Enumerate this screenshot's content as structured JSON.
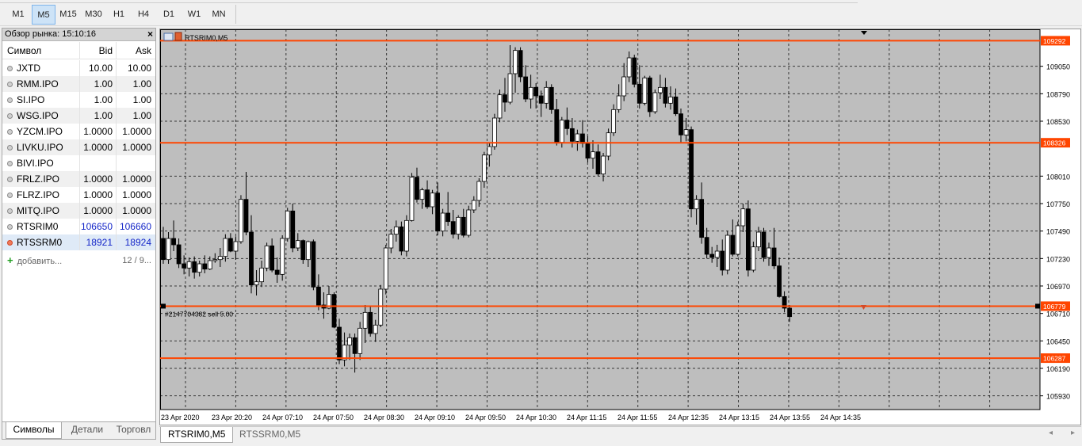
{
  "timeframes": [
    "M1",
    "M5",
    "M15",
    "M30",
    "H1",
    "H4",
    "D1",
    "W1",
    "MN"
  ],
  "active_timeframe": "M5",
  "market_watch": {
    "title": "Обзор рынка: 15:10:16",
    "close_glyph": "×",
    "columns": {
      "symbol": "Символ",
      "bid": "Bid",
      "ask": "Ask"
    },
    "rows": [
      {
        "symbol": "JXTD",
        "bid": "10.00",
        "ask": "10.00"
      },
      {
        "symbol": "RMM.IPO",
        "bid": "1.00",
        "ask": "1.00"
      },
      {
        "symbol": "SI.IPO",
        "bid": "1.00",
        "ask": "1.00"
      },
      {
        "symbol": "WSG.IPO",
        "bid": "1.00",
        "ask": "1.00"
      },
      {
        "symbol": "YZCM.IPO",
        "bid": "1.0000",
        "ask": "1.0000"
      },
      {
        "symbol": "LIVKU.IPO",
        "bid": "1.0000",
        "ask": "1.0000"
      },
      {
        "symbol": "BIVI.IPO",
        "bid": "",
        "ask": ""
      },
      {
        "symbol": "FRLZ.IPO",
        "bid": "1.0000",
        "ask": "1.0000"
      },
      {
        "symbol": "FLRZ.IPO",
        "bid": "1.0000",
        "ask": "1.0000"
      },
      {
        "symbol": "MITQ.IPO",
        "bid": "1.0000",
        "ask": "1.0000"
      },
      {
        "symbol": "RTSRIM0",
        "bid": "106650",
        "ask": "106660"
      },
      {
        "symbol": "RTSSRM0",
        "bid": "18921",
        "ask": "18924"
      }
    ],
    "add_label": "добавить...",
    "count": "12 / 9...",
    "tabs": [
      "Символы",
      "Детали",
      "Торговл"
    ]
  },
  "chart": {
    "title": "RTSRIM0,M5",
    "order_label": "#2147704382 sell 5.00",
    "hlines": [
      {
        "price": 109292,
        "label": "109292"
      },
      {
        "price": 108326,
        "label": "108326"
      },
      {
        "price": 106779,
        "label": "106779"
      },
      {
        "price": 106287,
        "label": "106287"
      }
    ],
    "line_color": "#ff4500",
    "up_color": "#ffffff",
    "down_color": "#000000",
    "bg_color": "#bebebe",
    "grid_color": "#000000"
  },
  "chart_data": {
    "type": "candlestick",
    "y_ticks": [
      109050,
      108790,
      108530,
      108010,
      107750,
      107490,
      107230,
      106970,
      106710,
      106450,
      106190,
      105930
    ],
    "x_ticks": [
      "23 Apr 2020",
      "23 Apr 20:20",
      "24 Apr 07:10",
      "24 Apr 07:50",
      "24 Apr 08:30",
      "24 Apr 09:10",
      "24 Apr 09:50",
      "24 Apr 10:30",
      "24 Apr 11:15",
      "24 Apr 11:55",
      "24 Apr 12:35",
      "24 Apr 13:15",
      "24 Apr 13:55",
      "24 Apr 14:35"
    ],
    "ylim": [
      105800,
      109400
    ],
    "candles": [
      [
        107420,
        107530,
        107180,
        107220
      ],
      [
        107220,
        107480,
        107180,
        107420
      ],
      [
        107420,
        107590,
        107300,
        107360
      ],
      [
        107360,
        107420,
        107140,
        107180
      ],
      [
        107180,
        107260,
        107080,
        107140
      ],
      [
        107140,
        107240,
        107060,
        107200
      ],
      [
        107200,
        107250,
        107040,
        107100
      ],
      [
        107100,
        107210,
        107060,
        107180
      ],
      [
        107180,
        107260,
        107090,
        107130
      ],
      [
        107130,
        107250,
        107120,
        107210
      ],
      [
        107210,
        107280,
        107190,
        107220
      ],
      [
        107220,
        107330,
        107150,
        107250
      ],
      [
        107250,
        107460,
        107200,
        107420
      ],
      [
        107420,
        107470,
        107290,
        107300
      ],
      [
        107300,
        107440,
        107220,
        107390
      ],
      [
        107390,
        107830,
        107370,
        107790
      ],
      [
        107790,
        108050,
        107450,
        107480
      ],
      [
        107480,
        107640,
        106900,
        106980
      ],
      [
        106980,
        107120,
        106880,
        107010
      ],
      [
        107010,
        107210,
        106960,
        107140
      ],
      [
        107140,
        107380,
        107110,
        107350
      ],
      [
        107350,
        107420,
        107100,
        107120
      ],
      [
        107120,
        107240,
        107000,
        107080
      ],
      [
        107080,
        107450,
        107020,
        107420
      ],
      [
        107420,
        107710,
        107390,
        107680
      ],
      [
        107680,
        107750,
        107290,
        107330
      ],
      [
        107330,
        107470,
        107300,
        107400
      ],
      [
        107400,
        107410,
        107180,
        107220
      ],
      [
        107220,
        107400,
        107150,
        107390
      ],
      [
        107390,
        107410,
        106930,
        106960
      ],
      [
        106960,
        107080,
        106740,
        106790
      ],
      [
        106790,
        106910,
        106660,
        106760
      ],
      [
        106760,
        106970,
        106750,
        106890
      ],
      [
        106890,
        106910,
        106570,
        106580
      ],
      [
        106580,
        106660,
        106230,
        106270
      ],
      [
        106270,
        106530,
        106210,
        106410
      ],
      [
        106410,
        106520,
        106270,
        106480
      ],
      [
        106480,
        106520,
        106150,
        106330
      ],
      [
        106330,
        106630,
        106270,
        106570
      ],
      [
        106570,
        106790,
        106430,
        106720
      ],
      [
        106720,
        106780,
        106490,
        106520
      ],
      [
        106520,
        106650,
        106440,
        106600
      ],
      [
        106600,
        106980,
        106580,
        106940
      ],
      [
        106940,
        107360,
        106890,
        107330
      ],
      [
        107330,
        107510,
        107280,
        107460
      ],
      [
        107460,
        107590,
        107390,
        107530
      ],
      [
        107530,
        107580,
        107260,
        107300
      ],
      [
        107300,
        107640,
        107250,
        107590
      ],
      [
        107590,
        108040,
        107580,
        108000
      ],
      [
        108000,
        108090,
        107760,
        107790
      ],
      [
        107790,
        107900,
        107700,
        107880
      ],
      [
        107880,
        107970,
        107700,
        107720
      ],
      [
        107720,
        107880,
        107650,
        107850
      ],
      [
        107850,
        107950,
        107450,
        107490
      ],
      [
        107490,
        107700,
        107440,
        107660
      ],
      [
        107660,
        107860,
        107540,
        107580
      ],
      [
        107580,
        107690,
        107420,
        107460
      ],
      [
        107460,
        107640,
        107410,
        107620
      ],
      [
        107620,
        107700,
        107430,
        107450
      ],
      [
        107450,
        107730,
        107430,
        107690
      ],
      [
        107690,
        107820,
        107660,
        107780
      ],
      [
        107780,
        107990,
        107720,
        107960
      ],
      [
        107960,
        108240,
        107900,
        108210
      ],
      [
        108210,
        108330,
        108100,
        108290
      ],
      [
        108290,
        108600,
        108260,
        108560
      ],
      [
        108560,
        108830,
        108520,
        108780
      ],
      [
        108780,
        108940,
        108620,
        108710
      ],
      [
        108710,
        109250,
        108690,
        108980
      ],
      [
        108980,
        109230,
        108800,
        109200
      ],
      [
        109200,
        109230,
        108900,
        108950
      ],
      [
        108950,
        109060,
        108710,
        108740
      ],
      [
        108740,
        108970,
        108650,
        108850
      ],
      [
        108850,
        108890,
        108650,
        108770
      ],
      [
        108770,
        108820,
        108570,
        108700
      ],
      [
        108700,
        108910,
        108650,
        108850
      ],
      [
        108850,
        108880,
        108600,
        108640
      ],
      [
        108640,
        108740,
        108300,
        108330
      ],
      [
        108330,
        108570,
        108280,
        108540
      ],
      [
        108540,
        108660,
        108400,
        108460
      ],
      [
        108460,
        108560,
        108280,
        108340
      ],
      [
        108340,
        108450,
        108250,
        108410
      ],
      [
        108410,
        108540,
        108280,
        108320
      ],
      [
        108320,
        108390,
        108140,
        108180
      ],
      [
        108180,
        108350,
        108080,
        108240
      ],
      [
        108240,
        108310,
        108010,
        108030
      ],
      [
        108030,
        108230,
        107960,
        108200
      ],
      [
        108200,
        108460,
        108160,
        108420
      ],
      [
        108420,
        108690,
        108390,
        108640
      ],
      [
        108640,
        108880,
        108610,
        108770
      ],
      [
        108770,
        109080,
        108720,
        108950
      ],
      [
        108950,
        109190,
        108900,
        109130
      ],
      [
        109130,
        109160,
        108850,
        108880
      ],
      [
        108880,
        109060,
        108650,
        108700
      ],
      [
        108700,
        108960,
        108680,
        108940
      ],
      [
        108940,
        108960,
        108570,
        108620
      ],
      [
        108620,
        108830,
        108600,
        108800
      ],
      [
        108800,
        108970,
        108740,
        108850
      ],
      [
        108850,
        108940,
        108660,
        108700
      ],
      [
        108700,
        108860,
        108640,
        108760
      ],
      [
        108760,
        108840,
        108580,
        108600
      ],
      [
        108600,
        108650,
        108330,
        108400
      ],
      [
        108400,
        108560,
        108340,
        108450
      ],
      [
        108450,
        108480,
        107620,
        107700
      ],
      [
        107700,
        107830,
        107550,
        107790
      ],
      [
        107790,
        107950,
        107370,
        107430
      ],
      [
        107430,
        107520,
        107230,
        107270
      ],
      [
        107270,
        107340,
        107190,
        107240
      ],
      [
        107240,
        107360,
        107150,
        107300
      ],
      [
        107300,
        107410,
        107070,
        107120
      ],
      [
        107120,
        107490,
        107080,
        107450
      ],
      [
        107450,
        107600,
        107250,
        107270
      ],
      [
        107270,
        107580,
        107250,
        107540
      ],
      [
        107540,
        107750,
        107480,
        107700
      ],
      [
        107700,
        107780,
        107060,
        107120
      ],
      [
        107120,
        107390,
        107100,
        107340
      ],
      [
        107340,
        107530,
        107300,
        107480
      ],
      [
        107480,
        107520,
        107200,
        107240
      ],
      [
        107240,
        107380,
        107160,
        107330
      ],
      [
        107330,
        107520,
        107130,
        107160
      ],
      [
        107160,
        107240,
        106860,
        106870
      ],
      [
        106870,
        106920,
        106720,
        106760
      ],
      [
        106760,
        106790,
        106630,
        106680
      ]
    ]
  },
  "chart_tabs": [
    "RTSRIM0,M5",
    "RTSSRM0,M5"
  ],
  "tab_nav": {
    "prev": "◂",
    "next": "▸"
  }
}
